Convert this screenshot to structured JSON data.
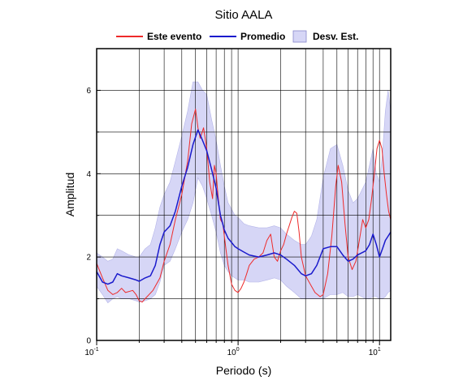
{
  "chart_data": {
    "type": "line",
    "title": "Sitio AALA",
    "xlabel": "Periodo (s)",
    "ylabel": "Amplitud",
    "x_scale": "log",
    "xlim": [
      0.1,
      12
    ],
    "ylim": [
      0,
      7
    ],
    "grid": true,
    "legend_position": "top",
    "x_ticks": [
      {
        "base": "10",
        "exp": "-1"
      },
      {
        "base": "10",
        "exp": "0"
      },
      {
        "base": "10",
        "exp": "1"
      }
    ],
    "y_ticks": [
      "0",
      "2",
      "4",
      "6"
    ],
    "colors": {
      "este_evento": "#ee2a2a",
      "promedio": "#1a1acc",
      "band_fill": "#d6d6f6",
      "band_edge": "#b4b4e8"
    },
    "legend": [
      {
        "key": "este_evento",
        "label": "Este evento",
        "kind": "line"
      },
      {
        "key": "promedio",
        "label": "Promedio",
        "kind": "line"
      },
      {
        "key": "desv_est",
        "label": "Desv. Est.",
        "kind": "box"
      }
    ],
    "series": [
      {
        "key": "este_evento",
        "name": "Este evento",
        "points": [
          [
            0.1,
            1.85
          ],
          [
            0.11,
            1.5
          ],
          [
            0.12,
            1.2
          ],
          [
            0.13,
            1.1
          ],
          [
            0.14,
            1.15
          ],
          [
            0.15,
            1.25
          ],
          [
            0.16,
            1.15
          ],
          [
            0.18,
            1.2
          ],
          [
            0.19,
            1.1
          ],
          [
            0.2,
            0.95
          ],
          [
            0.21,
            0.92
          ],
          [
            0.22,
            1.0
          ],
          [
            0.25,
            1.2
          ],
          [
            0.28,
            1.5
          ],
          [
            0.3,
            1.9
          ],
          [
            0.33,
            2.3
          ],
          [
            0.36,
            2.9
          ],
          [
            0.4,
            3.5
          ],
          [
            0.44,
            4.3
          ],
          [
            0.47,
            5.2
          ],
          [
            0.5,
            5.55
          ],
          [
            0.52,
            5.1
          ],
          [
            0.54,
            4.85
          ],
          [
            0.57,
            5.1
          ],
          [
            0.6,
            4.6
          ],
          [
            0.63,
            3.8
          ],
          [
            0.66,
            3.4
          ],
          [
            0.68,
            4.2
          ],
          [
            0.7,
            4.0
          ],
          [
            0.72,
            3.5
          ],
          [
            0.75,
            2.9
          ],
          [
            0.78,
            2.8
          ],
          [
            0.82,
            2.2
          ],
          [
            0.85,
            1.8
          ],
          [
            0.9,
            1.35
          ],
          [
            0.95,
            1.2
          ],
          [
            1.0,
            1.15
          ],
          [
            1.05,
            1.25
          ],
          [
            1.1,
            1.4
          ],
          [
            1.15,
            1.6
          ],
          [
            1.2,
            1.8
          ],
          [
            1.3,
            1.95
          ],
          [
            1.4,
            2.0
          ],
          [
            1.5,
            2.1
          ],
          [
            1.6,
            2.4
          ],
          [
            1.7,
            2.55
          ],
          [
            1.8,
            2.0
          ],
          [
            1.9,
            1.9
          ],
          [
            2.0,
            2.15
          ],
          [
            2.1,
            2.3
          ],
          [
            2.2,
            2.55
          ],
          [
            2.4,
            2.95
          ],
          [
            2.5,
            3.1
          ],
          [
            2.6,
            3.05
          ],
          [
            2.7,
            2.6
          ],
          [
            2.8,
            2.0
          ],
          [
            3.0,
            1.55
          ],
          [
            3.3,
            1.3
          ],
          [
            3.5,
            1.15
          ],
          [
            3.8,
            1.05
          ],
          [
            4.0,
            1.1
          ],
          [
            4.3,
            1.6
          ],
          [
            4.6,
            2.5
          ],
          [
            4.9,
            3.7
          ],
          [
            5.1,
            4.2
          ],
          [
            5.4,
            3.8
          ],
          [
            5.7,
            2.8
          ],
          [
            6.0,
            2.0
          ],
          [
            6.4,
            1.7
          ],
          [
            6.8,
            1.9
          ],
          [
            7.2,
            2.4
          ],
          [
            7.6,
            2.9
          ],
          [
            8.0,
            2.7
          ],
          [
            8.4,
            2.9
          ],
          [
            8.8,
            3.4
          ],
          [
            9.2,
            4.0
          ],
          [
            9.6,
            4.6
          ],
          [
            10.0,
            4.8
          ],
          [
            10.4,
            4.6
          ],
          [
            10.8,
            4.0
          ],
          [
            11.2,
            3.5
          ],
          [
            11.6,
            3.1
          ],
          [
            12.0,
            2.9
          ]
        ]
      },
      {
        "key": "promedio",
        "name": "Promedio",
        "points": [
          [
            0.1,
            1.65
          ],
          [
            0.11,
            1.4
          ],
          [
            0.12,
            1.35
          ],
          [
            0.13,
            1.4
          ],
          [
            0.14,
            1.6
          ],
          [
            0.15,
            1.55
          ],
          [
            0.17,
            1.5
          ],
          [
            0.19,
            1.45
          ],
          [
            0.2,
            1.42
          ],
          [
            0.22,
            1.5
          ],
          [
            0.24,
            1.55
          ],
          [
            0.26,
            1.8
          ],
          [
            0.28,
            2.3
          ],
          [
            0.3,
            2.6
          ],
          [
            0.33,
            2.75
          ],
          [
            0.36,
            3.1
          ],
          [
            0.4,
            3.7
          ],
          [
            0.44,
            4.15
          ],
          [
            0.48,
            4.7
          ],
          [
            0.52,
            5.05
          ],
          [
            0.56,
            4.8
          ],
          [
            0.6,
            4.55
          ],
          [
            0.65,
            4.1
          ],
          [
            0.7,
            3.65
          ],
          [
            0.75,
            3.0
          ],
          [
            0.8,
            2.65
          ],
          [
            0.85,
            2.45
          ],
          [
            0.9,
            2.35
          ],
          [
            0.95,
            2.25
          ],
          [
            1.0,
            2.2
          ],
          [
            1.1,
            2.12
          ],
          [
            1.2,
            2.05
          ],
          [
            1.4,
            2.0
          ],
          [
            1.6,
            2.05
          ],
          [
            1.8,
            2.1
          ],
          [
            2.0,
            2.05
          ],
          [
            2.2,
            1.95
          ],
          [
            2.5,
            1.8
          ],
          [
            2.8,
            1.6
          ],
          [
            3.0,
            1.55
          ],
          [
            3.3,
            1.6
          ],
          [
            3.6,
            1.8
          ],
          [
            4.0,
            2.2
          ],
          [
            4.5,
            2.25
          ],
          [
            5.0,
            2.25
          ],
          [
            5.5,
            2.05
          ],
          [
            6.0,
            1.9
          ],
          [
            6.5,
            1.95
          ],
          [
            7.0,
            2.05
          ],
          [
            8.0,
            2.15
          ],
          [
            8.5,
            2.3
          ],
          [
            9.0,
            2.55
          ],
          [
            9.5,
            2.3
          ],
          [
            10.0,
            2.0
          ],
          [
            10.5,
            2.2
          ],
          [
            11.0,
            2.4
          ],
          [
            11.5,
            2.5
          ],
          [
            12.0,
            2.6
          ]
        ]
      }
    ],
    "band": {
      "key": "desv_est",
      "name": "Desv. Est.",
      "x": [
        0.1,
        0.11,
        0.12,
        0.13,
        0.14,
        0.15,
        0.17,
        0.19,
        0.2,
        0.22,
        0.24,
        0.26,
        0.28,
        0.3,
        0.33,
        0.36,
        0.4,
        0.44,
        0.48,
        0.52,
        0.56,
        0.6,
        0.65,
        0.7,
        0.75,
        0.8,
        0.85,
        0.9,
        0.95,
        1.0,
        1.1,
        1.2,
        1.4,
        1.6,
        1.8,
        2.0,
        2.2,
        2.5,
        2.8,
        3.0,
        3.3,
        3.6,
        4.0,
        4.5,
        5.0,
        5.5,
        6.0,
        6.5,
        7.0,
        8.0,
        8.5,
        9.0,
        9.5,
        10.0,
        10.5,
        11.0,
        11.5,
        12.0
      ],
      "upper": [
        2.1,
        2.0,
        1.9,
        1.95,
        2.2,
        2.15,
        2.05,
        2.0,
        2.0,
        2.2,
        2.3,
        2.7,
        3.2,
        3.5,
        3.8,
        4.3,
        4.9,
        5.5,
        6.2,
        6.2,
        6.0,
        5.9,
        5.3,
        4.8,
        4.2,
        3.7,
        3.3,
        3.15,
        3.0,
        2.95,
        2.8,
        2.75,
        2.7,
        2.7,
        2.75,
        2.7,
        2.55,
        2.4,
        2.3,
        2.3,
        2.5,
        2.9,
        3.9,
        4.6,
        4.7,
        4.2,
        3.6,
        3.3,
        3.4,
        3.8,
        4.2,
        4.6,
        4.0,
        3.8,
        4.5,
        5.5,
        6.0,
        5.5
      ],
      "lower": [
        1.3,
        1.1,
        0.9,
        1.0,
        1.05,
        1.0,
        1.0,
        0.95,
        0.92,
        0.95,
        1.0,
        1.1,
        1.4,
        1.8,
        1.9,
        2.2,
        2.6,
        2.9,
        3.3,
        3.9,
        3.7,
        3.4,
        3.0,
        2.6,
        2.1,
        1.8,
        1.65,
        1.55,
        1.5,
        1.45,
        1.45,
        1.4,
        1.4,
        1.45,
        1.5,
        1.45,
        1.3,
        1.15,
        1.0,
        1.0,
        1.0,
        1.0,
        1.0,
        1.1,
        1.1,
        1.15,
        1.05,
        1.05,
        1.1,
        1.0,
        1.0,
        1.05,
        1.05,
        1.0,
        1.0,
        1.05,
        1.15,
        1.2
      ]
    }
  }
}
